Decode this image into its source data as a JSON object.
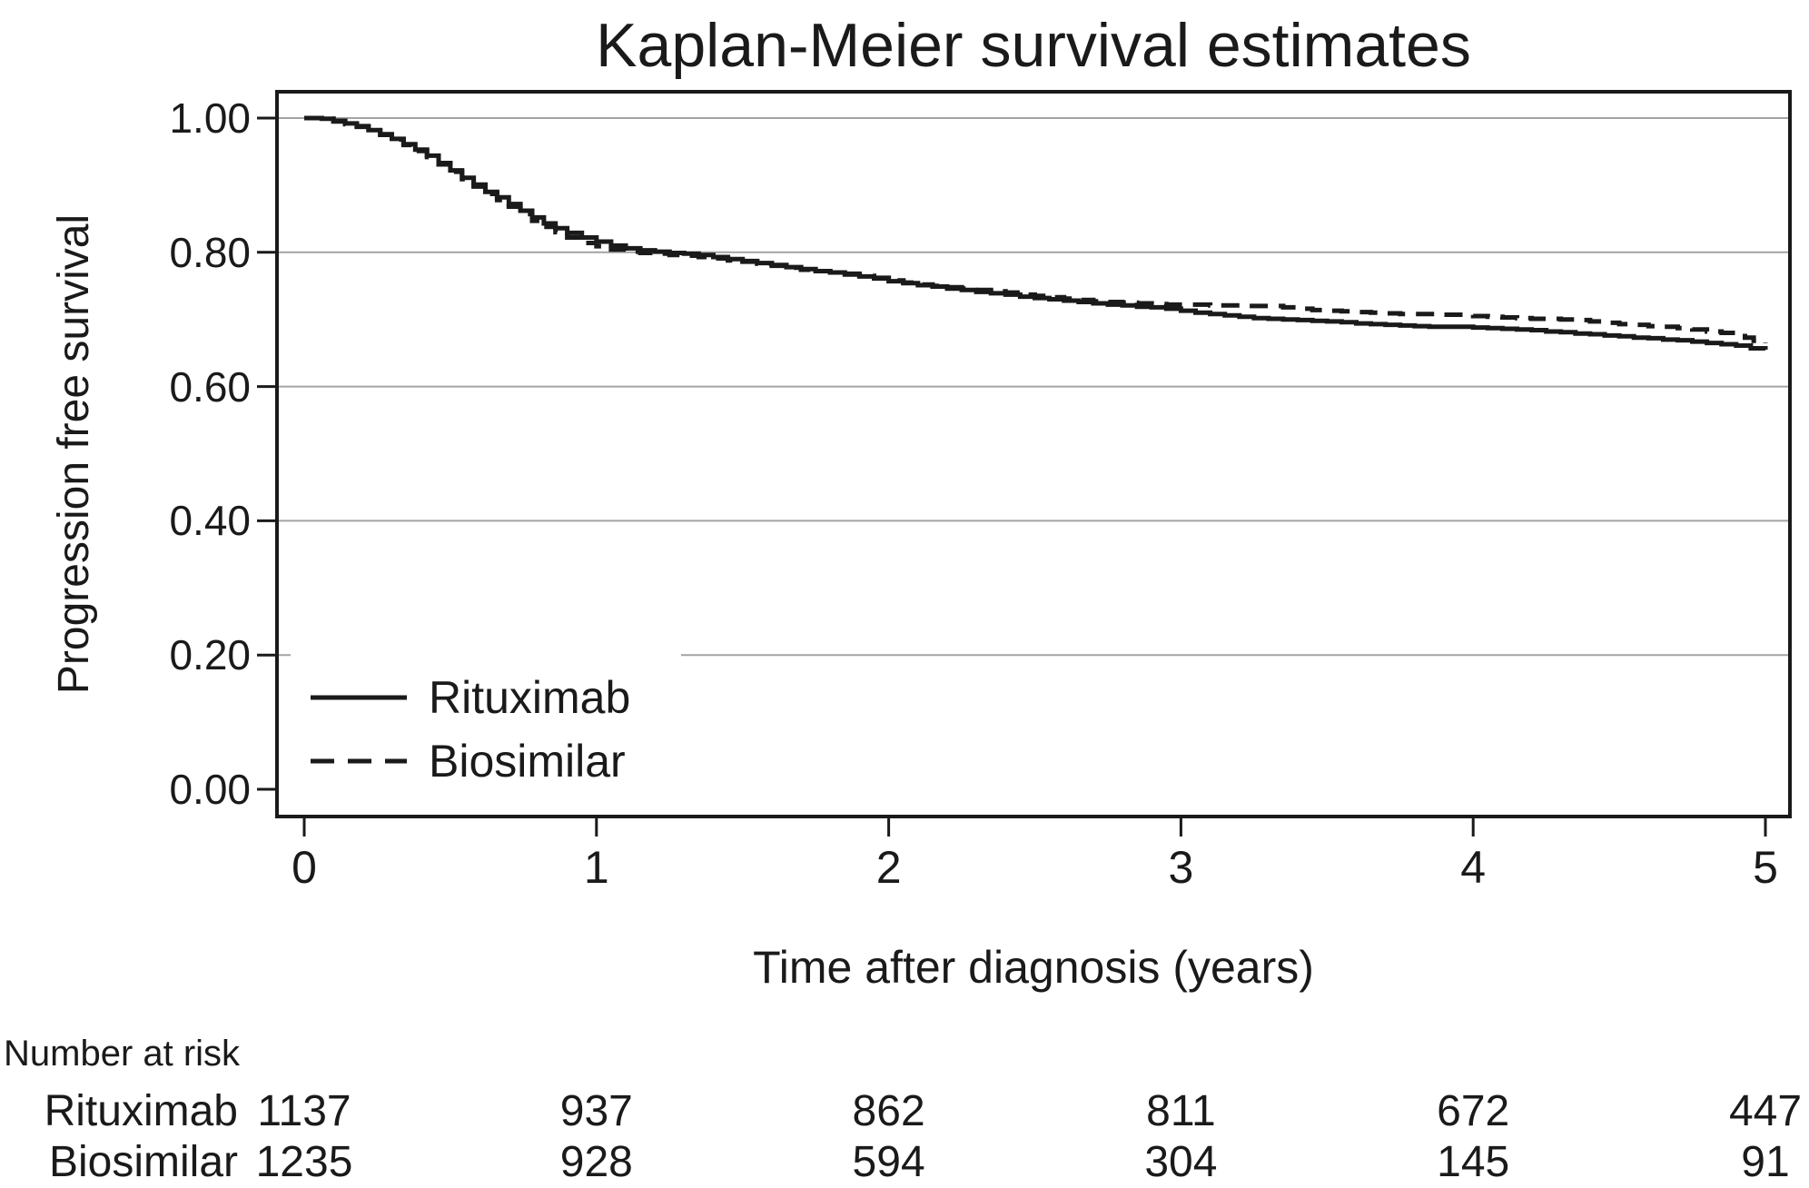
{
  "title": "Kaplan-Meier survival estimates",
  "y_axis": {
    "label": "Progression free survival",
    "ticks": [
      "1.00",
      "0.80",
      "0.60",
      "0.40",
      "0.20",
      "0.00"
    ]
  },
  "x_axis": {
    "label": "Time after diagnosis (years)",
    "ticks": [
      "0",
      "1",
      "2",
      "3",
      "4",
      "5"
    ]
  },
  "legend": {
    "items": [
      {
        "label": "Rituximab",
        "style": "solid"
      },
      {
        "label": "Biosimilar",
        "style": "dashed"
      }
    ]
  },
  "risk_table": {
    "heading": "Number at risk",
    "rows": [
      {
        "label": "Rituximab",
        "values": [
          "1137",
          "937",
          "862",
          "811",
          "672",
          "447"
        ]
      },
      {
        "label": "Biosimilar",
        "values": [
          "1235",
          "928",
          "594",
          "304",
          "145",
          "91"
        ]
      }
    ]
  },
  "colors": {
    "curve": "#1a1a1a",
    "frame": "#1a1a1a",
    "grid": "#a3a3a3",
    "background": "#ffffff"
  },
  "chart_data": {
    "type": "line",
    "subtype": "kaplan-meier-step",
    "title": "Kaplan-Meier survival estimates",
    "xlabel": "Time after diagnosis (years)",
    "ylabel": "Progression free survival",
    "xlim": [
      0,
      5
    ],
    "ylim": [
      0,
      1
    ],
    "x_tick_values": [
      0,
      1,
      2,
      3,
      4,
      5
    ],
    "y_tick_values": [
      1.0,
      0.8,
      0.6,
      0.4,
      0.2,
      0.0
    ],
    "grid": "horizontal-gridlines-at-0.20-through-1.00",
    "legend_position": "inside-bottom-left",
    "interpolation": "step-after",
    "series": [
      {
        "name": "Rituximab",
        "line_style": "solid",
        "color": "#1a1a1a",
        "points": [
          [
            0.0,
            1.0
          ],
          [
            0.06,
            0.999
          ],
          [
            0.1,
            0.996
          ],
          [
            0.14,
            0.992
          ],
          [
            0.18,
            0.988
          ],
          [
            0.22,
            0.982
          ],
          [
            0.26,
            0.976
          ],
          [
            0.3,
            0.969
          ],
          [
            0.34,
            0.961
          ],
          [
            0.38,
            0.953
          ],
          [
            0.42,
            0.944
          ],
          [
            0.46,
            0.933
          ],
          [
            0.5,
            0.922
          ],
          [
            0.54,
            0.911
          ],
          [
            0.58,
            0.901
          ],
          [
            0.62,
            0.89
          ],
          [
            0.66,
            0.882
          ],
          [
            0.7,
            0.872
          ],
          [
            0.74,
            0.862
          ],
          [
            0.78,
            0.852
          ],
          [
            0.82,
            0.843
          ],
          [
            0.86,
            0.836
          ],
          [
            0.9,
            0.829
          ],
          [
            0.95,
            0.822
          ],
          [
            1.0,
            0.816
          ],
          [
            1.05,
            0.81
          ],
          [
            1.1,
            0.806
          ],
          [
            1.15,
            0.803
          ],
          [
            1.2,
            0.801
          ],
          [
            1.25,
            0.799
          ],
          [
            1.3,
            0.798
          ],
          [
            1.35,
            0.796
          ],
          [
            1.4,
            0.793
          ],
          [
            1.45,
            0.79
          ],
          [
            1.5,
            0.787
          ],
          [
            1.55,
            0.784
          ],
          [
            1.6,
            0.781
          ],
          [
            1.65,
            0.778
          ],
          [
            1.7,
            0.775
          ],
          [
            1.75,
            0.772
          ],
          [
            1.8,
            0.77
          ],
          [
            1.85,
            0.767
          ],
          [
            1.9,
            0.764
          ],
          [
            1.95,
            0.761
          ],
          [
            2.0,
            0.757
          ],
          [
            2.05,
            0.754
          ],
          [
            2.1,
            0.751
          ],
          [
            2.15,
            0.749
          ],
          [
            2.2,
            0.746
          ],
          [
            2.25,
            0.744
          ],
          [
            2.3,
            0.741
          ],
          [
            2.35,
            0.739
          ],
          [
            2.4,
            0.737
          ],
          [
            2.45,
            0.734
          ],
          [
            2.5,
            0.732
          ],
          [
            2.55,
            0.73
          ],
          [
            2.6,
            0.728
          ],
          [
            2.65,
            0.726
          ],
          [
            2.7,
            0.724
          ],
          [
            2.75,
            0.722
          ],
          [
            2.8,
            0.721
          ],
          [
            2.85,
            0.719
          ],
          [
            2.9,
            0.718
          ],
          [
            2.95,
            0.716
          ],
          [
            3.0,
            0.713
          ],
          [
            3.05,
            0.71
          ],
          [
            3.1,
            0.708
          ],
          [
            3.15,
            0.706
          ],
          [
            3.2,
            0.704
          ],
          [
            3.25,
            0.702
          ],
          [
            3.3,
            0.701
          ],
          [
            3.35,
            0.7
          ],
          [
            3.4,
            0.699
          ],
          [
            3.45,
            0.698
          ],
          [
            3.5,
            0.697
          ],
          [
            3.55,
            0.696
          ],
          [
            3.6,
            0.694
          ],
          [
            3.65,
            0.693
          ],
          [
            3.7,
            0.692
          ],
          [
            3.75,
            0.691
          ],
          [
            3.8,
            0.69
          ],
          [
            3.85,
            0.689
          ],
          [
            3.9,
            0.689
          ],
          [
            4.0,
            0.688
          ],
          [
            4.05,
            0.687
          ],
          [
            4.1,
            0.686
          ],
          [
            4.15,
            0.685
          ],
          [
            4.2,
            0.684
          ],
          [
            4.25,
            0.682
          ],
          [
            4.3,
            0.681
          ],
          [
            4.35,
            0.679
          ],
          [
            4.4,
            0.678
          ],
          [
            4.45,
            0.676
          ],
          [
            4.5,
            0.675
          ],
          [
            4.55,
            0.673
          ],
          [
            4.6,
            0.672
          ],
          [
            4.65,
            0.67
          ],
          [
            4.7,
            0.669
          ],
          [
            4.75,
            0.667
          ],
          [
            4.8,
            0.665
          ],
          [
            4.85,
            0.663
          ],
          [
            4.9,
            0.661
          ],
          [
            4.95,
            0.657
          ],
          [
            5.0,
            0.655
          ]
        ]
      },
      {
        "name": "Biosimilar",
        "line_style": "dashed",
        "color": "#1a1a1a",
        "points": [
          [
            0.0,
            1.0
          ],
          [
            0.06,
            0.999
          ],
          [
            0.1,
            0.995
          ],
          [
            0.14,
            0.991
          ],
          [
            0.18,
            0.987
          ],
          [
            0.22,
            0.981
          ],
          [
            0.26,
            0.975
          ],
          [
            0.3,
            0.968
          ],
          [
            0.34,
            0.96
          ],
          [
            0.38,
            0.951
          ],
          [
            0.42,
            0.942
          ],
          [
            0.46,
            0.931
          ],
          [
            0.5,
            0.92
          ],
          [
            0.54,
            0.909
          ],
          [
            0.58,
            0.898
          ],
          [
            0.62,
            0.887
          ],
          [
            0.66,
            0.878
          ],
          [
            0.7,
            0.868
          ],
          [
            0.74,
            0.857
          ],
          [
            0.78,
            0.847
          ],
          [
            0.82,
            0.838
          ],
          [
            0.86,
            0.83
          ],
          [
            0.9,
            0.822
          ],
          [
            0.95,
            0.814
          ],
          [
            1.0,
            0.809
          ],
          [
            1.05,
            0.804
          ],
          [
            1.1,
            0.801
          ],
          [
            1.15,
            0.799
          ],
          [
            1.2,
            0.798
          ],
          [
            1.25,
            0.796
          ],
          [
            1.3,
            0.795
          ],
          [
            1.35,
            0.793
          ],
          [
            1.4,
            0.791
          ],
          [
            1.45,
            0.788
          ],
          [
            1.5,
            0.786
          ],
          [
            1.55,
            0.783
          ],
          [
            1.6,
            0.78
          ],
          [
            1.65,
            0.777
          ],
          [
            1.7,
            0.774
          ],
          [
            1.75,
            0.772
          ],
          [
            1.8,
            0.77
          ],
          [
            1.85,
            0.768
          ],
          [
            1.9,
            0.765
          ],
          [
            1.95,
            0.762
          ],
          [
            2.0,
            0.758
          ],
          [
            2.05,
            0.755
          ],
          [
            2.1,
            0.752
          ],
          [
            2.15,
            0.75
          ],
          [
            2.2,
            0.748
          ],
          [
            2.25,
            0.746
          ],
          [
            2.3,
            0.744
          ],
          [
            2.35,
            0.742
          ],
          [
            2.4,
            0.74
          ],
          [
            2.45,
            0.737
          ],
          [
            2.5,
            0.735
          ],
          [
            2.55,
            0.733
          ],
          [
            2.6,
            0.731
          ],
          [
            2.65,
            0.729
          ],
          [
            2.7,
            0.727
          ],
          [
            2.75,
            0.726
          ],
          [
            2.8,
            0.725
          ],
          [
            2.85,
            0.724
          ],
          [
            2.9,
            0.723
          ],
          [
            2.95,
            0.722
          ],
          [
            3.0,
            0.722
          ],
          [
            3.1,
            0.721
          ],
          [
            3.2,
            0.72
          ],
          [
            3.3,
            0.72
          ],
          [
            3.35,
            0.718
          ],
          [
            3.4,
            0.716
          ],
          [
            3.45,
            0.714
          ],
          [
            3.5,
            0.713
          ],
          [
            3.55,
            0.712
          ],
          [
            3.6,
            0.711
          ],
          [
            3.65,
            0.71
          ],
          [
            3.7,
            0.709
          ],
          [
            3.75,
            0.708
          ],
          [
            3.8,
            0.708
          ],
          [
            3.9,
            0.707
          ],
          [
            4.0,
            0.705
          ],
          [
            4.05,
            0.704
          ],
          [
            4.1,
            0.703
          ],
          [
            4.15,
            0.702
          ],
          [
            4.2,
            0.701
          ],
          [
            4.3,
            0.7
          ],
          [
            4.35,
            0.699
          ],
          [
            4.4,
            0.697
          ],
          [
            4.45,
            0.695
          ],
          [
            4.5,
            0.693
          ],
          [
            4.55,
            0.692
          ],
          [
            4.6,
            0.69
          ],
          [
            4.65,
            0.689
          ],
          [
            4.7,
            0.687
          ],
          [
            4.75,
            0.685
          ],
          [
            4.8,
            0.682
          ],
          [
            4.85,
            0.68
          ],
          [
            4.9,
            0.679
          ],
          [
            4.93,
            0.673
          ],
          [
            4.96,
            0.668
          ],
          [
            5.0,
            0.665
          ]
        ]
      }
    ]
  }
}
